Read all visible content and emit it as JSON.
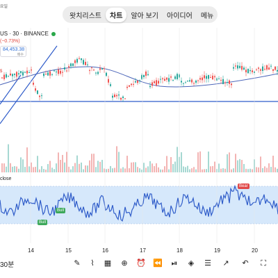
{
  "tabs": [
    {
      "label": "왓치리스트",
      "active": false
    },
    {
      "label": "차트",
      "active": true
    },
    {
      "label": "알아 보기",
      "active": false
    },
    {
      "label": "아이디어",
      "active": false
    },
    {
      "label": "메뉴",
      "active": false
    }
  ],
  "header": {
    "top_label": "요일",
    "symbol": "US · 30 · BINANCE",
    "change": "(−0.73%)",
    "price": "84,453.38",
    "price_sub": "매수",
    "left_marker": "$"
  },
  "indicator": {
    "title": "close",
    "bull_label": "Bull",
    "bear_label": "Bear"
  },
  "x_axis": {
    "labels": [
      "14",
      "15",
      "16",
      "17",
      "18",
      "19",
      "20"
    ]
  },
  "bottom": {
    "timeframe": "30분",
    "tools": [
      "brush-icon",
      "line-chart-icon",
      "grid-icon",
      "plus-circle-icon",
      "alarm-icon",
      "rewind-icon",
      "replay-icon",
      "layers-icon",
      "sliders-icon",
      "trend-icon",
      "undo-icon",
      "fullscreen-icon"
    ]
  },
  "colors": {
    "accent": "#2f6fd6",
    "up": "#26a69a",
    "down": "#ef5350",
    "rsi_band": "#d6e8fb",
    "rsi_line": "#2f5cc9"
  }
}
